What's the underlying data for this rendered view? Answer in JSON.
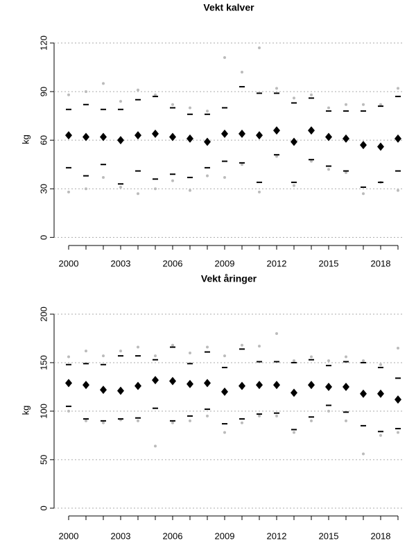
{
  "chart_data": [
    {
      "type": "dot",
      "title": "Vekt kalver",
      "ylabel": "kg",
      "x": [
        2000,
        2001,
        2002,
        2003,
        2004,
        2005,
        2006,
        2007,
        2008,
        2009,
        2010,
        2011,
        2012,
        2013,
        2014,
        2015,
        2016,
        2017,
        2018,
        2019
      ],
      "mean": [
        63,
        62,
        62,
        60,
        63,
        64,
        62,
        61,
        59,
        64,
        64,
        63,
        66,
        59,
        66,
        62,
        61,
        57,
        56,
        61
      ],
      "upper": [
        79,
        82,
        79,
        79,
        85,
        87,
        80,
        76,
        76,
        80,
        93,
        89,
        89,
        83,
        86,
        78,
        78,
        78,
        81,
        87
      ],
      "lower": [
        43,
        38,
        45,
        33,
        41,
        36,
        39,
        37,
        43,
        47,
        46,
        34,
        51,
        34,
        48,
        44,
        41,
        31,
        34,
        41
      ],
      "max": [
        88,
        90,
        95,
        84,
        91,
        88,
        82,
        80,
        78,
        111,
        102,
        117,
        92,
        86,
        88,
        80,
        82,
        82,
        82,
        92
      ],
      "min": [
        28,
        30,
        37,
        31,
        27,
        30,
        35,
        29,
        38,
        37,
        45,
        28,
        50,
        32,
        47,
        42,
        40,
        27,
        34,
        29
      ],
      "point_color": "#bbbbbb",
      "mark_color": "#000000",
      "xlim": [
        1999.16,
        2019.24
      ],
      "xticks": [
        2000,
        2003,
        2006,
        2009,
        2012,
        2015,
        2018
      ],
      "ylim": [
        -5,
        126
      ],
      "yticks": [
        0,
        30,
        60,
        90,
        120
      ],
      "grid": true
    },
    {
      "type": "dot",
      "title": "Vekt åringer",
      "ylabel": "kg",
      "x": [
        2000,
        2001,
        2002,
        2003,
        2004,
        2005,
        2006,
        2007,
        2008,
        2009,
        2010,
        2011,
        2012,
        2013,
        2014,
        2015,
        2016,
        2017,
        2018,
        2019
      ],
      "mean": [
        129,
        127,
        122,
        121,
        126,
        132,
        131,
        128,
        129,
        120,
        126,
        127,
        127,
        119,
        127,
        125,
        125,
        118,
        118,
        112
      ],
      "upper": [
        148,
        149,
        148,
        157,
        157,
        153,
        166,
        149,
        161,
        145,
        164,
        151,
        151,
        150,
        153,
        147,
        151,
        150,
        145,
        134
      ],
      "lower": [
        105,
        92,
        90,
        92,
        93,
        103,
        90,
        95,
        102,
        87,
        92,
        97,
        98,
        81,
        94,
        106,
        99,
        85,
        79,
        82
      ],
      "max": [
        156,
        162,
        157,
        162,
        166,
        157,
        168,
        160,
        166,
        157,
        168,
        167,
        180,
        152,
        156,
        152,
        156,
        152,
        148,
        165
      ],
      "min": [
        100,
        90,
        88,
        91,
        90,
        64,
        88,
        90,
        95,
        78,
        88,
        95,
        95,
        78,
        90,
        100,
        90,
        56,
        75,
        78
      ],
      "point_color": "#bbbbbb",
      "mark_color": "#000000",
      "xlim": [
        1999.16,
        2019.24
      ],
      "xticks": [
        2000,
        2003,
        2006,
        2009,
        2012,
        2015,
        2018
      ],
      "ylim": [
        -8,
        210
      ],
      "yticks": [
        0,
        50,
        100,
        150,
        200
      ],
      "grid": true
    }
  ]
}
